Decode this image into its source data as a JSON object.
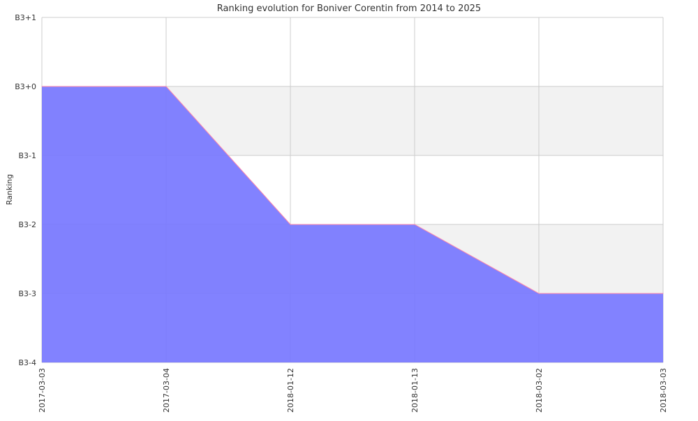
{
  "chart_data": {
    "type": "area",
    "title": "Ranking evolution for Boniver Corentin from 2014 to 2025",
    "xlabel": "",
    "ylabel": "Ranking",
    "x": [
      "2017-03-03",
      "2017-03-04",
      "2018-01-12",
      "2018-01-13",
      "2018-03-02",
      "2018-03-03"
    ],
    "y_ticks": [
      "B3+1",
      "B3+0",
      "B3-1",
      "B3-2",
      "B3-3",
      "B3-4"
    ],
    "series": [
      {
        "values": [
          "B3+0",
          "B3+0",
          "B3-2",
          "B3-2",
          "B3-3",
          "B3-3"
        ]
      }
    ],
    "colors": {
      "area_fill": "#7777ff",
      "line": "#ff88aa",
      "band_fill": "#f2f2f2",
      "grid": "#cccccc"
    },
    "grid": true,
    "legend": "none"
  }
}
